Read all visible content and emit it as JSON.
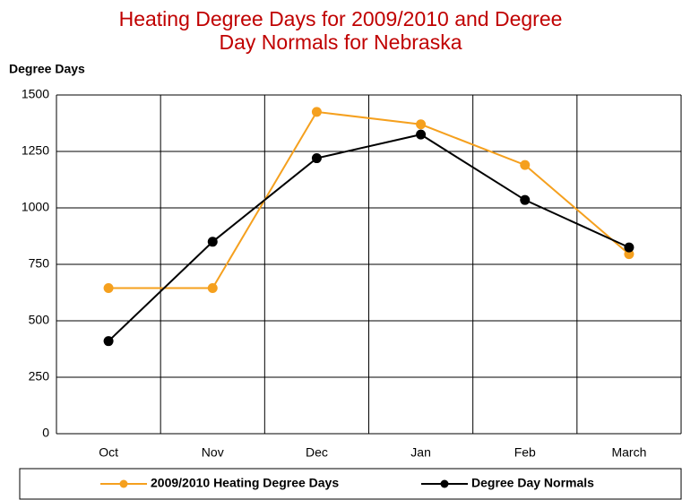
{
  "chart_data": {
    "type": "line",
    "title": "Heating Degree Days for 2009/2010 and Degree Day Normals for Nebraska",
    "y_label": "Degree Days",
    "categories": [
      "Oct",
      "Nov",
      "Dec",
      "Jan",
      "Feb",
      "March"
    ],
    "series": [
      {
        "name": "2009/2010 Heating Degree Days",
        "color": "#f5a01e",
        "values": [
          645,
          645,
          1425,
          1370,
          1190,
          795
        ]
      },
      {
        "name": "Degree Day Normals",
        "color": "#000000",
        "values": [
          410,
          850,
          1220,
          1325,
          1035,
          825
        ]
      }
    ],
    "ylim": [
      0,
      1500
    ],
    "yticks": [
      0,
      250,
      500,
      750,
      1000,
      1250,
      1500
    ],
    "grid": true,
    "legend": "bottom"
  }
}
